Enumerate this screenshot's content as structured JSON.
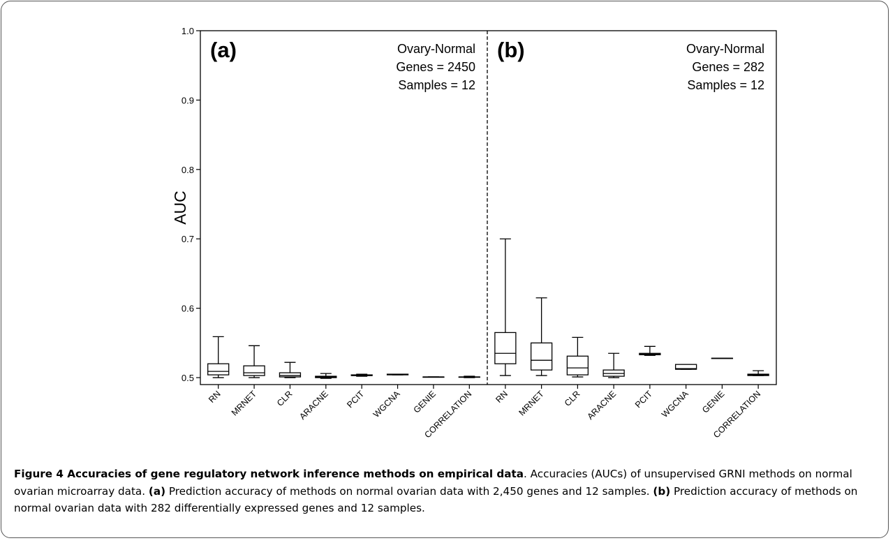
{
  "chart_data": {
    "type": "boxplot",
    "ylabel": "AUC",
    "ylim": [
      0.49,
      1.0
    ],
    "yticks": [
      "0.5",
      "0.6",
      "0.7",
      "0.8",
      "0.9",
      "1.0"
    ],
    "panels": [
      {
        "label": "(a)",
        "info": [
          "Ovary-Normal",
          "Genes = 2450",
          "Samples = 12"
        ],
        "categories": [
          "RN",
          "MRNET",
          "CLR",
          "ARACNE",
          "PCIT",
          "WGCNA",
          "GENIE",
          "CORRELATION"
        ],
        "boxes": [
          {
            "min": 0.5,
            "q1": 0.504,
            "median": 0.509,
            "q3": 0.52,
            "max": 0.559
          },
          {
            "min": 0.5,
            "q1": 0.503,
            "median": 0.507,
            "q3": 0.517,
            "max": 0.546
          },
          {
            "min": 0.5,
            "q1": 0.501,
            "median": 0.503,
            "q3": 0.507,
            "max": 0.522
          },
          {
            "min": 0.499,
            "q1": 0.5,
            "median": 0.501,
            "q3": 0.502,
            "max": 0.506
          },
          {
            "min": 0.502,
            "q1": 0.503,
            "median": 0.503,
            "q3": 0.504,
            "max": 0.505
          },
          {
            "min": 0.504,
            "q1": 0.504,
            "median": 0.505,
            "q3": 0.505,
            "max": 0.505
          },
          {
            "min": 0.501,
            "q1": 0.501,
            "median": 0.501,
            "q3": 0.501,
            "max": 0.501
          },
          {
            "min": 0.5,
            "q1": 0.501,
            "median": 0.501,
            "q3": 0.501,
            "max": 0.502
          }
        ]
      },
      {
        "label": "(b)",
        "info": [
          "Ovary-Normal",
          "Genes = 282",
          "Samples = 12"
        ],
        "categories": [
          "RN",
          "MRNET",
          "CLR",
          "ARACNE",
          "PCIT",
          "WGCNA",
          "GENIE",
          "CORRELATION"
        ],
        "boxes": [
          {
            "min": 0.503,
            "q1": 0.52,
            "median": 0.535,
            "q3": 0.565,
            "max": 0.7
          },
          {
            "min": 0.503,
            "q1": 0.511,
            "median": 0.525,
            "q3": 0.55,
            "max": 0.615
          },
          {
            "min": 0.501,
            "q1": 0.504,
            "median": 0.514,
            "q3": 0.531,
            "max": 0.558
          },
          {
            "min": 0.5,
            "q1": 0.502,
            "median": 0.506,
            "q3": 0.511,
            "max": 0.535
          },
          {
            "min": 0.532,
            "q1": 0.533,
            "median": 0.534,
            "q3": 0.535,
            "max": 0.545
          },
          {
            "min": 0.512,
            "q1": 0.512,
            "median": 0.513,
            "q3": 0.519,
            "max": 0.519
          },
          {
            "min": 0.528,
            "q1": 0.528,
            "median": 0.528,
            "q3": 0.528,
            "max": 0.528
          },
          {
            "min": 0.503,
            "q1": 0.503,
            "median": 0.504,
            "q3": 0.505,
            "max": 0.51
          }
        ]
      }
    ]
  },
  "caption": {
    "title": "Figure 4 Accuracies of gene regulatory network inference methods on empirical data",
    "intro": ". Accuracies (AUCs) of unsupervised GRNI methods on normal ovarian microarray data. ",
    "a_label": "(a)",
    "a_text": " Prediction accuracy of methods on normal ovarian data with 2,450 genes and 12 samples. ",
    "b_label": "(b)",
    "b_text": " Prediction accuracy of methods on normal ovarian data with 282 differentially expressed genes and 12 samples."
  }
}
